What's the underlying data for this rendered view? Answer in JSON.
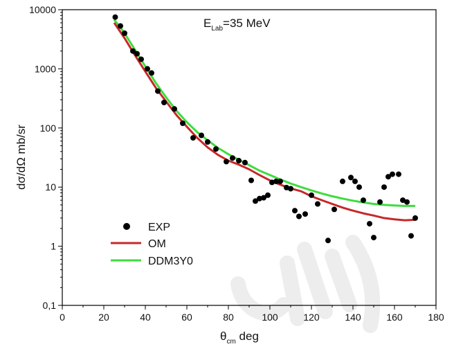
{
  "chart_data": {
    "type": "scatter",
    "annotation": {
      "main": "E",
      "sub": "Lab",
      "rest": "=35 MeV"
    },
    "xlabel": {
      "main": "θ",
      "sub": "cm",
      "rest": " deg"
    },
    "ylabel": "dσ/dΩ mb/sr",
    "xlim": [
      0,
      180
    ],
    "ylim": [
      0.1,
      10000
    ],
    "yscale": "log",
    "grid": false,
    "legend_position": "bottom-left",
    "x_ticks": [
      0,
      20,
      40,
      60,
      80,
      100,
      120,
      140,
      160,
      180
    ],
    "x_tick_labels": [
      "0",
      "20",
      "40",
      "60",
      "80",
      "100",
      "120",
      "140",
      "160",
      "180"
    ],
    "y_ticks": [
      0.1,
      1,
      10,
      100,
      1000,
      10000
    ],
    "y_tick_labels": [
      "0,1",
      "1",
      "10",
      "100",
      "1000",
      "10000"
    ],
    "series": [
      {
        "name": "EXP",
        "kind": "points",
        "color": "#000000",
        "points": [
          [
            25.5,
            7500
          ],
          [
            28,
            5300
          ],
          [
            30,
            4000
          ],
          [
            34,
            2000
          ],
          [
            36,
            1800
          ],
          [
            38,
            1450
          ],
          [
            41,
            1000
          ],
          [
            43,
            850
          ],
          [
            46,
            420
          ],
          [
            49,
            270
          ],
          [
            54,
            210
          ],
          [
            58,
            120
          ],
          [
            63,
            68
          ],
          [
            67,
            75
          ],
          [
            70,
            58
          ],
          [
            74,
            44
          ],
          [
            79,
            27
          ],
          [
            82,
            31
          ],
          [
            85,
            28
          ],
          [
            88,
            26
          ],
          [
            91,
            13
          ],
          [
            93,
            5.8
          ],
          [
            95,
            6.4
          ],
          [
            97,
            6.6
          ],
          [
            99,
            7.3
          ],
          [
            101,
            12
          ],
          [
            103,
            12.5
          ],
          [
            105,
            12.5
          ],
          [
            108,
            9.8
          ],
          [
            110,
            9.4
          ],
          [
            112,
            4.0
          ],
          [
            114,
            3.2
          ],
          [
            117,
            3.5
          ],
          [
            120,
            7.3
          ],
          [
            123,
            5.2
          ],
          [
            128,
            1.25
          ],
          [
            131,
            4.2
          ],
          [
            135,
            12.5
          ],
          [
            139,
            14.5
          ],
          [
            141,
            12.5
          ],
          [
            143,
            10
          ],
          [
            145,
            6
          ],
          [
            148,
            2.4
          ],
          [
            150,
            1.4
          ],
          [
            153,
            5.6
          ],
          [
            155,
            10
          ],
          [
            157,
            15
          ],
          [
            159,
            16.5
          ],
          [
            162,
            16.5
          ],
          [
            164,
            6
          ],
          [
            166,
            5.6
          ],
          [
            168,
            1.5
          ],
          [
            170,
            3
          ]
        ]
      },
      {
        "name": "OM",
        "kind": "line",
        "color": "#c62828",
        "x": [
          25,
          30,
          35,
          40,
          45,
          50,
          55,
          60,
          65,
          70,
          75,
          80,
          85,
          90,
          95,
          100,
          105,
          110,
          115,
          120,
          125,
          130,
          135,
          140,
          145,
          150,
          155,
          160,
          165,
          170
        ],
        "y": [
          6000,
          3300,
          1700,
          900,
          480,
          280,
          165,
          105,
          68,
          47,
          35,
          28,
          24,
          20,
          16,
          13,
          11,
          9.5,
          8.5,
          7.0,
          6.0,
          5.2,
          4.5,
          4.0,
          3.6,
          3.3,
          3.0,
          2.85,
          2.75,
          2.8
        ]
      },
      {
        "name": "DDM3Y0",
        "kind": "line",
        "color": "#3ddc3d",
        "x": [
          25,
          30,
          35,
          40,
          45,
          50,
          55,
          60,
          65,
          70,
          75,
          80,
          85,
          90,
          95,
          100,
          105,
          110,
          115,
          120,
          125,
          130,
          135,
          140,
          145,
          150,
          155,
          160,
          165,
          170
        ],
        "y": [
          6800,
          4000,
          2100,
          1100,
          580,
          330,
          195,
          125,
          85,
          62,
          46,
          36,
          29,
          23.5,
          19,
          16,
          13.5,
          11.5,
          10,
          8.8,
          7.8,
          7.0,
          6.4,
          5.9,
          5.5,
          5.2,
          5.0,
          4.9,
          4.8,
          4.8
        ]
      }
    ]
  }
}
